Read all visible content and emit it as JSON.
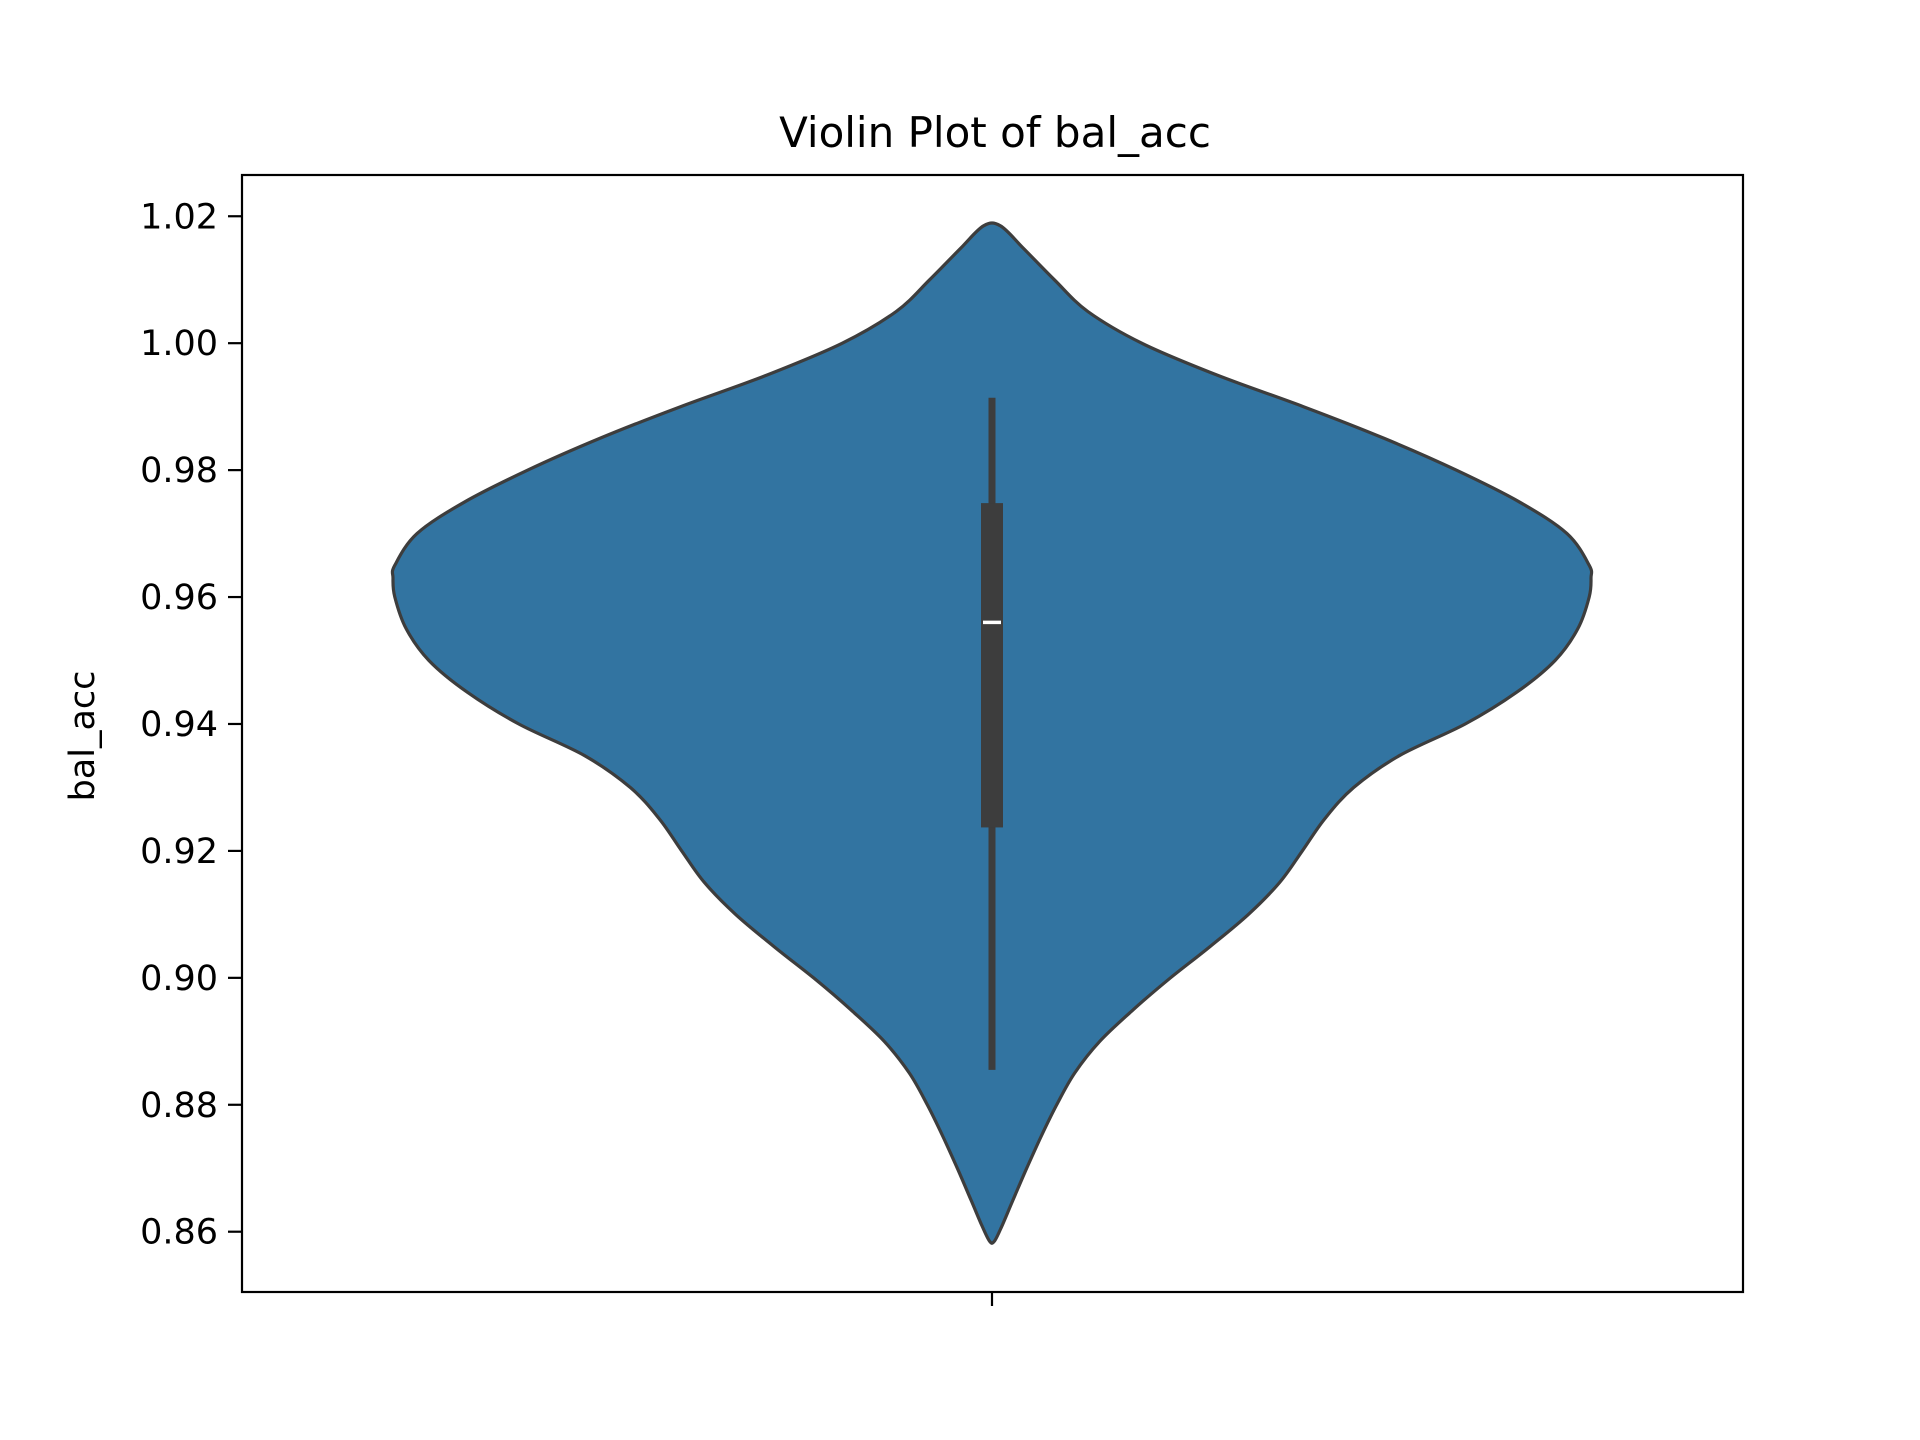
{
  "chart_data": {
    "type": "violin",
    "title": "Violin Plot of bal_acc",
    "xlabel": "",
    "ylabel": "bal_acc",
    "ylim": [
      0.8505,
      1.0265
    ],
    "yticks": [
      "0.86",
      "0.88",
      "0.90",
      "0.92",
      "0.94",
      "0.96",
      "0.98",
      "1.00",
      "1.02"
    ],
    "grid": false,
    "color": "#3274a1",
    "edge_color": "#3d3d3d",
    "series": [
      {
        "stats": {
          "min": 0.8855,
          "q1": 0.9237,
          "median": 0.956,
          "q3": 0.9748,
          "max": 0.9914
        },
        "density_extent": [
          0.8585,
          1.0185
        ],
        "density_profile": [
          [
            0.8585,
            0.004
          ],
          [
            0.861,
            0.017
          ],
          [
            0.865,
            0.035
          ],
          [
            0.87,
            0.058
          ],
          [
            0.875,
            0.082
          ],
          [
            0.88,
            0.108
          ],
          [
            0.885,
            0.138
          ],
          [
            0.89,
            0.18
          ],
          [
            0.895,
            0.236
          ],
          [
            0.9,
            0.298
          ],
          [
            0.905,
            0.365
          ],
          [
            0.91,
            0.428
          ],
          [
            0.915,
            0.48
          ],
          [
            0.92,
            0.518
          ],
          [
            0.925,
            0.555
          ],
          [
            0.93,
            0.604
          ],
          [
            0.935,
            0.68
          ],
          [
            0.94,
            0.79
          ],
          [
            0.945,
            0.876
          ],
          [
            0.95,
            0.94
          ],
          [
            0.955,
            0.978
          ],
          [
            0.96,
            0.997
          ],
          [
            0.963,
            1.0
          ],
          [
            0.965,
            0.997
          ],
          [
            0.97,
            0.96
          ],
          [
            0.975,
            0.88
          ],
          [
            0.98,
            0.775
          ],
          [
            0.985,
            0.655
          ],
          [
            0.99,
            0.52
          ],
          [
            0.995,
            0.375
          ],
          [
            1.0,
            0.25
          ],
          [
            1.005,
            0.16
          ],
          [
            1.01,
            0.104
          ],
          [
            1.015,
            0.052
          ],
          [
            1.0185,
            0.014
          ]
        ]
      }
    ]
  }
}
